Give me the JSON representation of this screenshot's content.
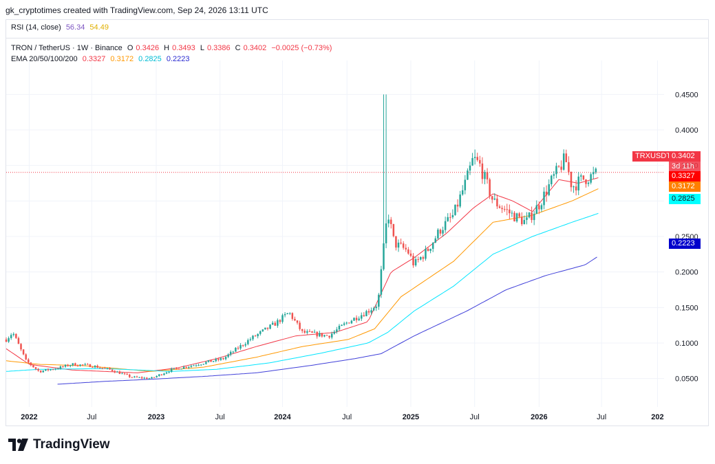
{
  "header": {
    "created_by": "gk_cryptotimes created with TradingView.com, Sep 24, 2026 13:11 UTC"
  },
  "rsi": {
    "label": "RSI (14, close)",
    "value1": "56.34",
    "value2": "54.49"
  },
  "symbol": {
    "name": "TRON / TetherUS · 1W · Binance",
    "o_label": "O",
    "o": "0.3426",
    "h_label": "H",
    "h": "0.3493",
    "l_label": "L",
    "l": "0.3386",
    "c_label": "C",
    "c": "0.3402",
    "change": "−0.0025 (−0.73%)"
  },
  "ema": {
    "label": "EMA 20/50/100/200",
    "v20": "0.3327",
    "v50": "0.3172",
    "v100": "0.2825",
    "v200": "0.2223"
  },
  "price_labels": {
    "ticker": "TRXUSDT",
    "last": "0.3402",
    "countdown": "3d 11h",
    "ema20": "0.3327",
    "ema50": "0.3172",
    "ema100": "0.2825",
    "ema200": "0.2223"
  },
  "colors": {
    "up": "#26a69a",
    "down": "#ef5350",
    "ema20": "#f23645",
    "ema50": "#ff9800",
    "ema100": "#00e5ff",
    "ema200": "#3f3fd9",
    "rsi1": "#7e57c2",
    "rsi2": "#e0b000"
  },
  "brand": {
    "name": "TradingView"
  },
  "chart_data": {
    "type": "candlestick",
    "y_ticks": [
      "0.0500",
      "0.1000",
      "0.1500",
      "0.2000",
      "0.2500",
      "0.3000",
      "0.3500",
      "0.4000",
      "0.4500"
    ],
    "ylim": [
      0.01,
      0.49
    ],
    "x_ticks": [
      "2022",
      "Jul",
      "2023",
      "Jul",
      "2024",
      "Jul",
      "2025",
      "Jul",
      "2026",
      "Jul",
      "202"
    ],
    "grid": true,
    "series": [
      {
        "name": "EMA 20",
        "keypoints": [
          [
            0,
            0.092
          ],
          [
            0.035,
            0.07
          ],
          [
            0.1,
            0.062
          ],
          [
            0.2,
            0.058
          ],
          [
            0.26,
            0.065
          ],
          [
            0.32,
            0.078
          ],
          [
            0.38,
            0.095
          ],
          [
            0.44,
            0.11
          ],
          [
            0.5,
            0.115
          ],
          [
            0.55,
            0.13
          ],
          [
            0.585,
            0.2
          ],
          [
            0.62,
            0.22
          ],
          [
            0.67,
            0.255
          ],
          [
            0.71,
            0.29
          ],
          [
            0.74,
            0.31
          ],
          [
            0.77,
            0.3
          ],
          [
            0.8,
            0.285
          ],
          [
            0.84,
            0.33
          ],
          [
            0.87,
            0.325
          ],
          [
            0.9,
            0.3327
          ]
        ]
      },
      {
        "name": "EMA 50",
        "keypoints": [
          [
            0,
            0.075
          ],
          [
            0.05,
            0.07
          ],
          [
            0.12,
            0.068
          ],
          [
            0.22,
            0.06
          ],
          [
            0.3,
            0.066
          ],
          [
            0.38,
            0.08
          ],
          [
            0.45,
            0.095
          ],
          [
            0.52,
            0.105
          ],
          [
            0.56,
            0.12
          ],
          [
            0.6,
            0.165
          ],
          [
            0.68,
            0.215
          ],
          [
            0.74,
            0.27
          ],
          [
            0.8,
            0.28
          ],
          [
            0.86,
            0.3
          ],
          [
            0.9,
            0.3172
          ]
        ]
      },
      {
        "name": "EMA 100",
        "keypoints": [
          [
            0,
            0.06
          ],
          [
            0.05,
            0.063
          ],
          [
            0.15,
            0.064
          ],
          [
            0.25,
            0.06
          ],
          [
            0.32,
            0.063
          ],
          [
            0.4,
            0.072
          ],
          [
            0.48,
            0.086
          ],
          [
            0.55,
            0.1
          ],
          [
            0.58,
            0.115
          ],
          [
            0.62,
            0.145
          ],
          [
            0.68,
            0.18
          ],
          [
            0.74,
            0.225
          ],
          [
            0.8,
            0.25
          ],
          [
            0.86,
            0.27
          ],
          [
            0.9,
            0.2825
          ]
        ]
      },
      {
        "name": "EMA 200",
        "keypoints": [
          [
            0.078,
            0.042
          ],
          [
            0.15,
            0.046
          ],
          [
            0.22,
            0.049
          ],
          [
            0.3,
            0.053
          ],
          [
            0.38,
            0.058
          ],
          [
            0.46,
            0.068
          ],
          [
            0.53,
            0.078
          ],
          [
            0.57,
            0.085
          ],
          [
            0.62,
            0.11
          ],
          [
            0.7,
            0.145
          ],
          [
            0.76,
            0.175
          ],
          [
            0.82,
            0.195
          ],
          [
            0.88,
            0.21
          ],
          [
            0.9,
            0.2223
          ]
        ]
      }
    ],
    "price_keypoints": [
      [
        0,
        0.105
      ],
      [
        0.01,
        0.115
      ],
      [
        0.03,
        0.075
      ],
      [
        0.05,
        0.06
      ],
      [
        0.08,
        0.065
      ],
      [
        0.1,
        0.07
      ],
      [
        0.13,
        0.068
      ],
      [
        0.16,
        0.062
      ],
      [
        0.19,
        0.052
      ],
      [
        0.22,
        0.05
      ],
      [
        0.25,
        0.062
      ],
      [
        0.29,
        0.07
      ],
      [
        0.33,
        0.078
      ],
      [
        0.37,
        0.105
      ],
      [
        0.41,
        0.128
      ],
      [
        0.43,
        0.143
      ],
      [
        0.45,
        0.115
      ],
      [
        0.49,
        0.11
      ],
      [
        0.52,
        0.13
      ],
      [
        0.55,
        0.145
      ],
      [
        0.565,
        0.155
      ],
      [
        0.575,
        0.245
      ],
      [
        0.58,
        0.285
      ],
      [
        0.59,
        0.24
      ],
      [
        0.61,
        0.23
      ],
      [
        0.62,
        0.21
      ],
      [
        0.64,
        0.23
      ],
      [
        0.66,
        0.26
      ],
      [
        0.68,
        0.28
      ],
      [
        0.7,
        0.33
      ],
      [
        0.71,
        0.36
      ],
      [
        0.72,
        0.35
      ],
      [
        0.74,
        0.3
      ],
      [
        0.755,
        0.29
      ],
      [
        0.77,
        0.28
      ],
      [
        0.79,
        0.27
      ],
      [
        0.81,
        0.295
      ],
      [
        0.83,
        0.33
      ],
      [
        0.85,
        0.36
      ],
      [
        0.86,
        0.32
      ],
      [
        0.875,
        0.33
      ],
      [
        0.89,
        0.335
      ],
      [
        0.9,
        0.34
      ]
    ],
    "spike": {
      "x_frac": 0.576,
      "high": 0.45
    },
    "last_price": 0.3402
  }
}
